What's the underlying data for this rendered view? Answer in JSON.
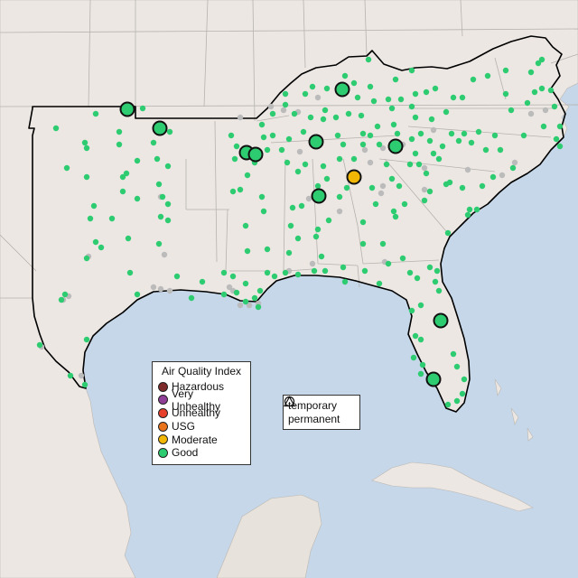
{
  "colors": {
    "ocean": "#c5d7e9",
    "land": "#ece7e3",
    "land_south": "#e8e2dc",
    "state_lines": "#b6b2ad",
    "region_outline": "#000000",
    "marker_stroke": "#111111",
    "nodata": "#bbbbbb"
  },
  "legend": {
    "title": "Air Quality Index",
    "items": [
      {
        "label": "Hazardous",
        "color": "#7e2b2b"
      },
      {
        "label": "Very Unhealthy",
        "color": "#8f3f97"
      },
      {
        "label": "Unhealthy",
        "color": "#e8412b"
      },
      {
        "label": "USG",
        "color": "#e9741c"
      },
      {
        "label": "Moderate",
        "color": "#f2b705"
      },
      {
        "label": "Good",
        "color": "#2ecc71"
      }
    ]
  },
  "monitor_legend": {
    "items": [
      {
        "label": "temporary",
        "shape": "circle"
      },
      {
        "label": "permanent",
        "shape": "triangle"
      }
    ]
  }
}
